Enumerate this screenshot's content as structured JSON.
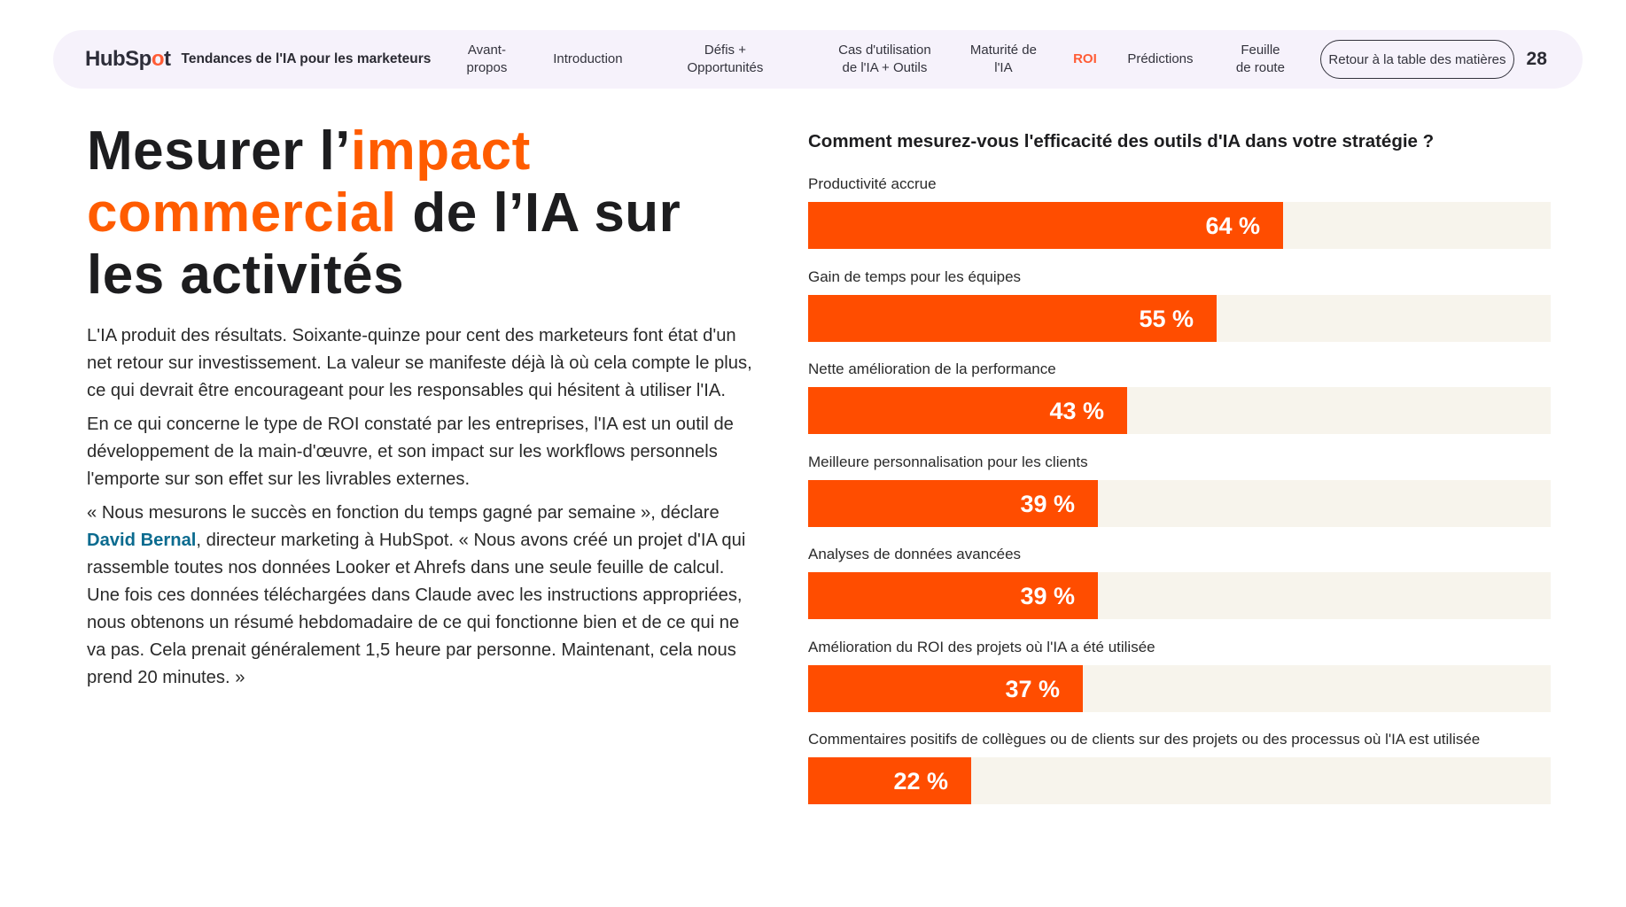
{
  "header": {
    "logo_text_pre": "HubSp",
    "logo_text_o": "o",
    "logo_text_post": "t",
    "title": "Tendances de l'IA pour les marketeurs",
    "nav": [
      {
        "label": "Avant-\npropos",
        "active": false
      },
      {
        "label": "Introduction",
        "active": false
      },
      {
        "label": "Défis +\nOpportunités",
        "active": false
      },
      {
        "label": "Cas d'utilisation\nde l'IA + Outils",
        "active": false
      },
      {
        "label": "Maturité de\nl'IA",
        "active": false
      },
      {
        "label": "ROI",
        "active": true
      },
      {
        "label": "Prédictions",
        "active": false
      },
      {
        "label": "Feuille\nde route",
        "active": false
      }
    ],
    "toc_button": "Retour à la table des matières",
    "page_number": "28"
  },
  "headline": {
    "part1": "Mesurer l’",
    "part2": "impact",
    "part3": "commercial",
    "part4": " de l’IA sur les activités"
  },
  "body": {
    "p1": "L'IA produit des résultats. Soixante-quinze pour cent des marketeurs font état d'un net retour sur investissement. La valeur se manifeste déjà là où cela compte le plus, ce qui devrait être encourageant pour les responsables qui hésitent à utiliser l'IA.",
    "p2": "En ce qui concerne le type de ROI constaté par les entreprises, l'IA est un outil de développement de la main-d'œuvre, et son impact sur les workflows personnels l'emporte sur son effet sur les livrables externes.",
    "p3_before": "« Nous mesurons le succès en fonction du temps gagné par semaine », déclare ",
    "p3_author": "David Bernal",
    "p3_after": ", directeur marketing à HubSpot. « Nous avons créé un projet d'IA qui rassemble toutes nos données Looker et Ahrefs dans une seule feuille de calcul. Une fois ces données téléchargées dans Claude avec les instructions appropriées, nous obtenons un résumé hebdomadaire de ce qui fonctionne bien et de ce qui ne va pas. Cela prenait généralement 1,5 heure par personne. Maintenant, cela nous prend 20 minutes. »"
  },
  "colors": {
    "accent": "#ff5c00",
    "bar": "#ff4d00",
    "track": "#f7f4ec",
    "author_link": "#0b6b8f"
  },
  "chart_data": {
    "type": "bar",
    "orientation": "horizontal",
    "title": "Comment mesurez-vous l'efficacité des outils d'IA dans votre stratégie ?",
    "categories": [
      "Productivité accrue",
      "Gain de temps pour les équipes",
      "Nette amélioration de la performance",
      "Meilleure personnalisation pour les clients",
      "Analyses de données avancées",
      "Amélioration du ROI des projets où l'IA a été utilisée",
      "Commentaires positifs de collègues ou de clients sur des projets ou des processus où l'IA est utilisée"
    ],
    "values": [
      64,
      55,
      43,
      39,
      39,
      37,
      22
    ],
    "value_labels": [
      "64 %",
      "55 %",
      "43 %",
      "39 %",
      "39 %",
      "37 %",
      "22 %"
    ],
    "xlim": [
      0,
      100
    ],
    "unit": "%"
  }
}
